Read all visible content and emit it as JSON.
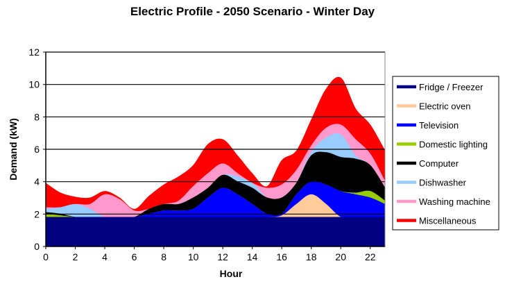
{
  "chart_data": {
    "type": "area",
    "stacked": true,
    "title": "Electric Profile - 2050 Scenario - Winter Day",
    "xlabel": "Hour",
    "ylabel": "Demand  (kW)",
    "xlim": [
      0,
      23
    ],
    "ylim": [
      0,
      12
    ],
    "x_ticks": [
      0,
      2,
      4,
      6,
      8,
      10,
      12,
      14,
      16,
      18,
      20,
      22
    ],
    "y_ticks": [
      0,
      2,
      4,
      6,
      8,
      10,
      12
    ],
    "grid": "horizontal",
    "legend": "right",
    "x": [
      0,
      1,
      2,
      3,
      4,
      5,
      6,
      7,
      8,
      9,
      10,
      11,
      12,
      13,
      14,
      15,
      16,
      17,
      18,
      19,
      20,
      21,
      22,
      23
    ],
    "series": [
      {
        "name": "Fridge / Freezer",
        "color": "#000080",
        "values": [
          1.8,
          1.8,
          1.8,
          1.8,
          1.8,
          1.8,
          1.8,
          1.8,
          1.8,
          1.8,
          1.8,
          1.8,
          1.8,
          1.8,
          1.8,
          1.8,
          1.8,
          1.8,
          1.8,
          1.8,
          1.8,
          1.8,
          1.8,
          1.8
        ]
      },
      {
        "name": "Electric oven",
        "color": "#FFCC99",
        "values": [
          0,
          0,
          0,
          0,
          0,
          0,
          0,
          0,
          0,
          0,
          0,
          0,
          0,
          0,
          0,
          0,
          0.1,
          0.8,
          1.4,
          0.8,
          0,
          0,
          0,
          0
        ]
      },
      {
        "name": "Television",
        "color": "#0000FF",
        "values": [
          0,
          0,
          0,
          0,
          0,
          0,
          0,
          0.2,
          0.4,
          0.4,
          0.5,
          1.2,
          1.8,
          1.4,
          0.8,
          0.2,
          0.1,
          0.6,
          0.8,
          1.2,
          1.6,
          1.4,
          1.2,
          0.8
        ]
      },
      {
        "name": "Domestic lighting",
        "color": "#99CC00",
        "values": [
          0.2,
          0.1,
          0,
          0,
          0,
          0,
          0,
          0,
          0,
          0,
          0,
          0,
          0,
          0,
          0,
          0,
          0,
          0,
          0,
          0,
          0,
          0.1,
          0.4,
          0.2
        ]
      },
      {
        "name": "Computer",
        "color": "#000000",
        "values": [
          0.1,
          0.1,
          0,
          0,
          0,
          0,
          0,
          0.3,
          0.4,
          0.4,
          0.7,
          0.6,
          0.8,
          0.8,
          1.0,
          1.0,
          1.0,
          0.7,
          1.6,
          2.0,
          2.1,
          2.1,
          1.6,
          0.8
        ]
      },
      {
        "name": "Dishwasher",
        "color": "#99CCFF",
        "values": [
          0.2,
          0.4,
          0.8,
          0.5,
          0,
          0,
          0,
          0,
          0,
          0,
          0,
          0,
          0,
          0.3,
          0.3,
          0,
          0,
          0,
          0.2,
          0.9,
          1.4,
          0.2,
          0,
          0
        ]
      },
      {
        "name": "Washing machine",
        "color": "#FF99CC",
        "values": [
          0.1,
          0,
          0,
          0.3,
          1.4,
          1.1,
          0.4,
          0,
          0,
          0.2,
          0.7,
          0.9,
          0.7,
          0.2,
          0,
          0.6,
          0.8,
          0.8,
          0.4,
          0.6,
          0.6,
          1.0,
          0.7,
          0.4
        ]
      },
      {
        "name": "Miscellaneous",
        "color": "#FF0000",
        "values": [
          1.5,
          0.9,
          0.45,
          0.4,
          0.2,
          0.1,
          0.1,
          0.8,
          1.2,
          1.5,
          1.3,
          1.8,
          1.5,
          1.1,
          0.6,
          0.1,
          1.5,
          1.2,
          1.6,
          2.4,
          2.9,
          1.9,
          1.8,
          1.9
        ]
      }
    ]
  }
}
